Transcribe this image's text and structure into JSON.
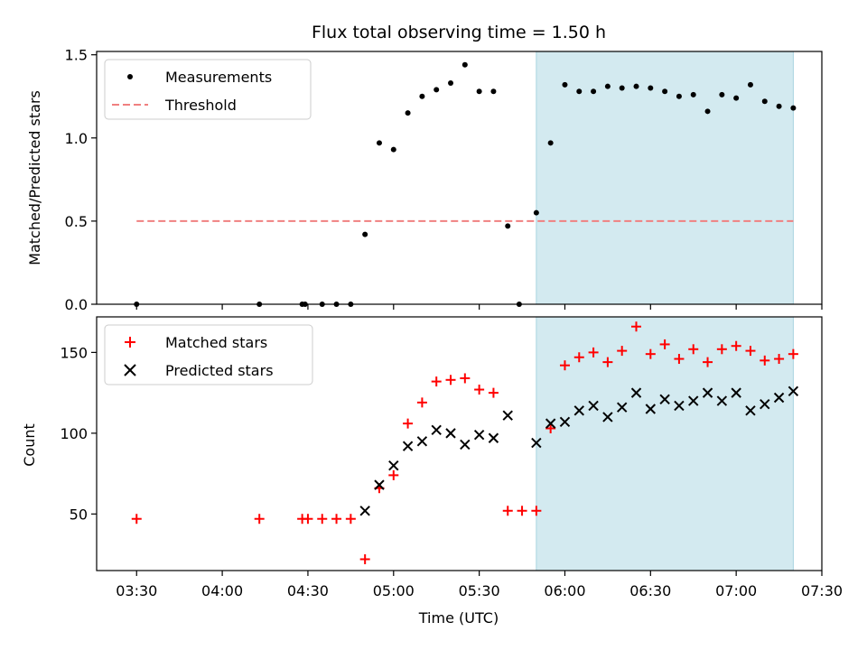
{
  "chart_data": [
    {
      "type": "scatter",
      "title": "Flux total observing time = 1.50 h",
      "ylabel": "Matched/Predicted stars",
      "ylim": [
        0,
        1.52
      ],
      "yticks": [
        "0.0",
        "0.5",
        "1.0",
        "1.5"
      ],
      "ytick_values": [
        0.0,
        0.5,
        1.0,
        1.5
      ],
      "shaded_span": {
        "start": "05:50",
        "end": "07:20",
        "color": "#d3eaf0",
        "edge_color": "#a8d4e0"
      },
      "legend_position": "upper-left",
      "series": [
        {
          "name": "Measurements",
          "marker": "dot",
          "color": "#000000",
          "x": [
            "03:30",
            "04:13",
            "04:28",
            "04:29",
            "04:35",
            "04:40",
            "04:45",
            "04:50",
            "04:55",
            "05:00",
            "05:05",
            "05:10",
            "05:15",
            "05:20",
            "05:25",
            "05:30",
            "05:35",
            "05:40",
            "05:44",
            "05:50",
            "05:55",
            "06:00",
            "06:05",
            "06:10",
            "06:15",
            "06:20",
            "06:25",
            "06:30",
            "06:35",
            "06:40",
            "06:45",
            "06:50",
            "06:55",
            "07:00",
            "07:05",
            "07:10",
            "07:15",
            "07:20"
          ],
          "y": [
            0,
            0,
            0,
            0,
            0,
            0,
            0,
            0.42,
            0.97,
            0.93,
            1.15,
            1.25,
            1.29,
            1.33,
            1.44,
            1.28,
            1.28,
            0.47,
            0,
            0.55,
            0.97,
            1.32,
            1.28,
            1.28,
            1.31,
            1.3,
            1.31,
            1.3,
            1.28,
            1.25,
            1.26,
            1.16,
            1.26,
            1.24,
            1.32,
            1.22,
            1.19,
            1.18
          ]
        },
        {
          "name": "Threshold",
          "marker": "dashed-line",
          "color": "#f08080",
          "x": [
            "03:30",
            "07:20"
          ],
          "y": [
            0.5,
            0.5
          ]
        }
      ]
    },
    {
      "type": "scatter",
      "xlabel": "Time (UTC)",
      "ylabel": "Count",
      "ylim": [
        15,
        172
      ],
      "yticks": [
        "50",
        "100",
        "150"
      ],
      "ytick_values": [
        50,
        100,
        150
      ],
      "xlim": [
        "03:16",
        "07:30"
      ],
      "xticks": [
        "03:30",
        "04:00",
        "04:30",
        "05:00",
        "05:30",
        "06:00",
        "06:30",
        "07:00",
        "07:30"
      ],
      "shaded_span": {
        "start": "05:50",
        "end": "07:20",
        "color": "#d3eaf0",
        "edge_color": "#a8d4e0"
      },
      "legend_position": "upper-left",
      "series": [
        {
          "name": "Matched stars",
          "marker": "plus",
          "color": "#ff0000",
          "x": [
            "03:30",
            "04:13",
            "04:28",
            "04:30",
            "04:35",
            "04:40",
            "04:45",
            "04:50",
            "04:55",
            "05:00",
            "05:05",
            "05:10",
            "05:15",
            "05:20",
            "05:25",
            "05:30",
            "05:35",
            "05:40",
            "05:45",
            "05:50",
            "05:55",
            "06:00",
            "06:05",
            "06:10",
            "06:15",
            "06:20",
            "06:25",
            "06:30",
            "06:35",
            "06:40",
            "06:45",
            "06:50",
            "06:55",
            "07:00",
            "07:05",
            "07:10",
            "07:15",
            "07:20"
          ],
          "y": [
            47,
            47,
            47,
            47,
            47,
            47,
            47,
            22,
            66,
            74,
            106,
            119,
            132,
            133,
            134,
            127,
            125,
            52,
            52,
            52,
            103,
            142,
            147,
            150,
            144,
            151,
            166,
            149,
            155,
            146,
            152,
            144,
            152,
            154,
            151,
            145,
            146,
            149
          ]
        },
        {
          "name": "Predicted stars",
          "marker": "x",
          "color": "#000000",
          "x": [
            "04:50",
            "04:55",
            "05:00",
            "05:05",
            "05:10",
            "05:15",
            "05:20",
            "05:25",
            "05:30",
            "05:35",
            "05:40",
            "05:50",
            "05:55",
            "06:00",
            "06:05",
            "06:10",
            "06:15",
            "06:20",
            "06:25",
            "06:30",
            "06:35",
            "06:40",
            "06:45",
            "06:50",
            "06:55",
            "07:00",
            "07:05",
            "07:10",
            "07:15",
            "07:20"
          ],
          "y": [
            52,
            68,
            80,
            92,
            95,
            102,
            100,
            93,
            99,
            97,
            111,
            94,
            106,
            107,
            114,
            117,
            110,
            116,
            125,
            115,
            121,
            117,
            120,
            125,
            120,
            125,
            114,
            118,
            122,
            126
          ]
        }
      ]
    }
  ]
}
